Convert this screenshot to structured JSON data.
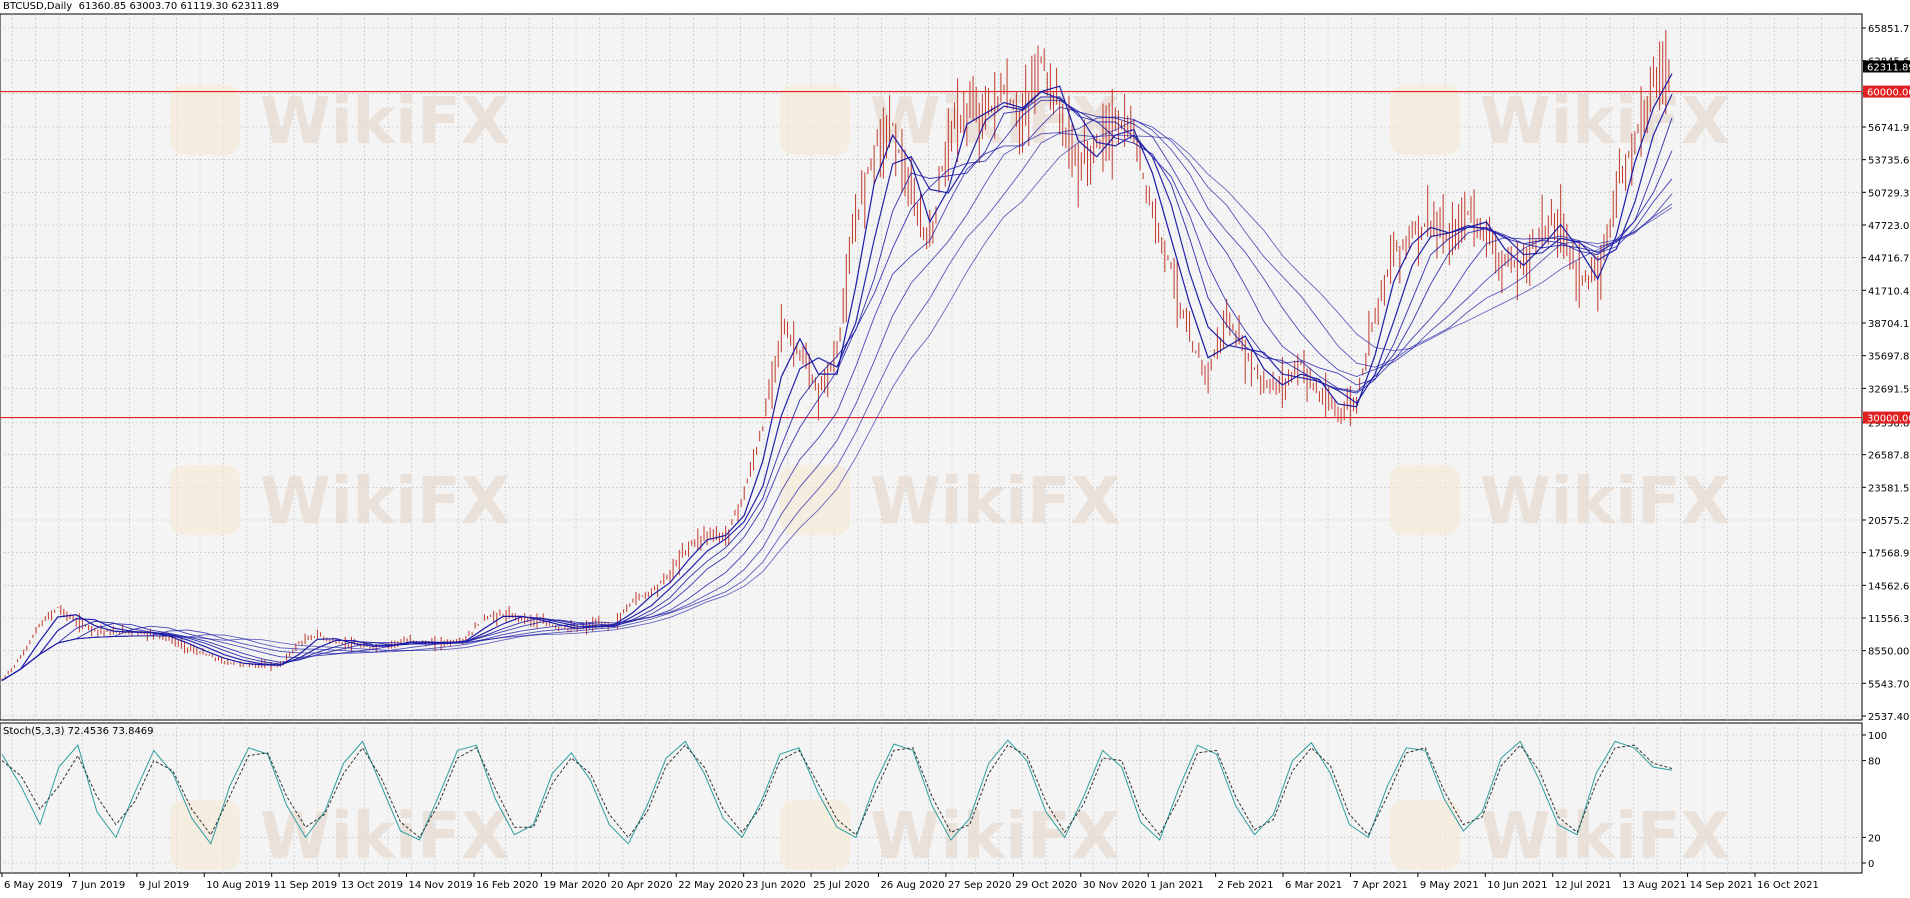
{
  "header": {
    "symbol": "BTCUSD,Daily",
    "ohlc": "61360.85 63003.70 61119.30 62311.89"
  },
  "stoch_header": "Stoch(5,3,3) 72.4536 73.8469",
  "watermark": "WikiFX",
  "colors": {
    "background": "#ffffff",
    "plot_bg": "#f4f4f4",
    "grid": "#bdbdbd",
    "candle": "#c0392b",
    "ma": "#1a1aa6",
    "hline": "#e02020",
    "stoch_main": "#2e9e9e",
    "stoch_signal": "#333333",
    "watermark": "#e7dcd2"
  },
  "chart_data": [
    {
      "type": "line",
      "title": "BTCUSD,Daily",
      "price_axis_ticks": [
        "65851.70",
        "62845.60",
        "59832.70",
        "56741.90",
        "53735.60",
        "50729.30",
        "47723.00",
        "44716.70",
        "41710.40",
        "38704.10",
        "35697.80",
        "32691.50",
        "29558.80",
        "26587.80",
        "23581.50",
        "20575.20",
        "17568.90",
        "14562.60",
        "11556.30",
        "8550.00",
        "5543.70",
        "2537.40"
      ],
      "price_tags": [
        {
          "label": "62311.89",
          "value": 62311.89
        },
        {
          "label": "60000.00",
          "value": 60000
        },
        {
          "label": "30000.00",
          "value": 30000
        }
      ],
      "horizontal_lines": [
        60000,
        30000
      ],
      "x_tick_labels": [
        "6 May 2019",
        "7 Jun 2019",
        "9 Jul 2019",
        "10 Aug 2019",
        "11 Sep 2019",
        "13 Oct 2019",
        "14 Nov 2019",
        "16 Feb 2020",
        "19 Mar 2020",
        "20 Apr 2020",
        "22 May 2020",
        "23 Jun 2020",
        "25 Jul 2020",
        "26 Aug 2020",
        "27 Sep 2020",
        "29 Oct 2020",
        "30 Nov 2020",
        "1 Jan 2021",
        "2 Feb 2021",
        "6 Mar 2021",
        "7 Apr 2021",
        "9 May 2021",
        "10 Jun 2021",
        "12 Jul 2021",
        "13 Aug 2021",
        "14 Sep 2021",
        "16 Oct 2021"
      ],
      "series": [
        {
          "values": [
            5800,
            7900,
            10800,
            12500,
            11200,
            10500,
            10200,
            10300,
            10100,
            9700,
            8800,
            8200,
            7500,
            7300,
            7200,
            7200,
            9200,
            10000,
            9300,
            9100,
            8800,
            9200,
            9500,
            9200,
            9300,
            9600,
            11600,
            11800,
            11600,
            11200,
            10700,
            10500,
            11000,
            10900,
            13200,
            14000,
            15600,
            18200,
            19300,
            19000,
            23000,
            29000,
            38500,
            36000,
            32000,
            36000,
            48000,
            55000,
            57000,
            50000,
            46000,
            56000,
            58000,
            58000,
            60000,
            57000,
            63000,
            58000,
            53000,
            55000,
            57000,
            56000,
            49000,
            44000,
            37000,
            34000,
            39000,
            36000,
            33000,
            33000,
            35000,
            32000,
            30500,
            31500,
            40000,
            45000,
            47000,
            48000,
            46000,
            49000,
            47000,
            44000,
            44000,
            47500,
            48000,
            43000,
            42500,
            51000,
            56000,
            61000,
            62311.89
          ]
        }
      ]
    },
    {
      "type": "line",
      "title": "Stoch(5,3,3) 72.4536 73.8469",
      "y_ticks": [
        "100",
        "80",
        "20",
        "0"
      ],
      "ylim": [
        0,
        100
      ],
      "series": [
        {
          "name": "Stoch(5,3,3)",
          "values": [
            85,
            60,
            30,
            75,
            92,
            40,
            20,
            55,
            88,
            70,
            35,
            15,
            60,
            90,
            85,
            45,
            20,
            40,
            78,
            95,
            60,
            25,
            18,
            52,
            88,
            92,
            50,
            22,
            30,
            70,
            86,
            65,
            30,
            15,
            45,
            82,
            95,
            70,
            35,
            20,
            48,
            85,
            90,
            55,
            28,
            20,
            62,
            93,
            88,
            45,
            18,
            35,
            78,
            96,
            80,
            40,
            20,
            52,
            88,
            75,
            32,
            18,
            58,
            92,
            85,
            45,
            22,
            38,
            80,
            94,
            70,
            30,
            20,
            60,
            90,
            88,
            50,
            25,
            40,
            82,
            95,
            65,
            30,
            22,
            70,
            95,
            90,
            75,
            72.4536
          ]
        },
        {
          "name": "Signal",
          "values": [
            80,
            68,
            42,
            60,
            84,
            52,
            30,
            48,
            80,
            72,
            42,
            22,
            52,
            84,
            86,
            52,
            28,
            38,
            70,
            90,
            66,
            32,
            20,
            46,
            82,
            90,
            58,
            28,
            28,
            62,
            82,
            70,
            38,
            20,
            40,
            76,
            92,
            75,
            42,
            24,
            44,
            80,
            88,
            62,
            34,
            22,
            55,
            88,
            90,
            52,
            24,
            30,
            70,
            92,
            84,
            48,
            24,
            46,
            82,
            80,
            40,
            22,
            50,
            86,
            88,
            52,
            26,
            34,
            72,
            90,
            76,
            38,
            22,
            52,
            86,
            90,
            56,
            30,
            36,
            76,
            92,
            72,
            36,
            24,
            62,
            90,
            92,
            78,
            73.8469
          ]
        }
      ]
    }
  ]
}
